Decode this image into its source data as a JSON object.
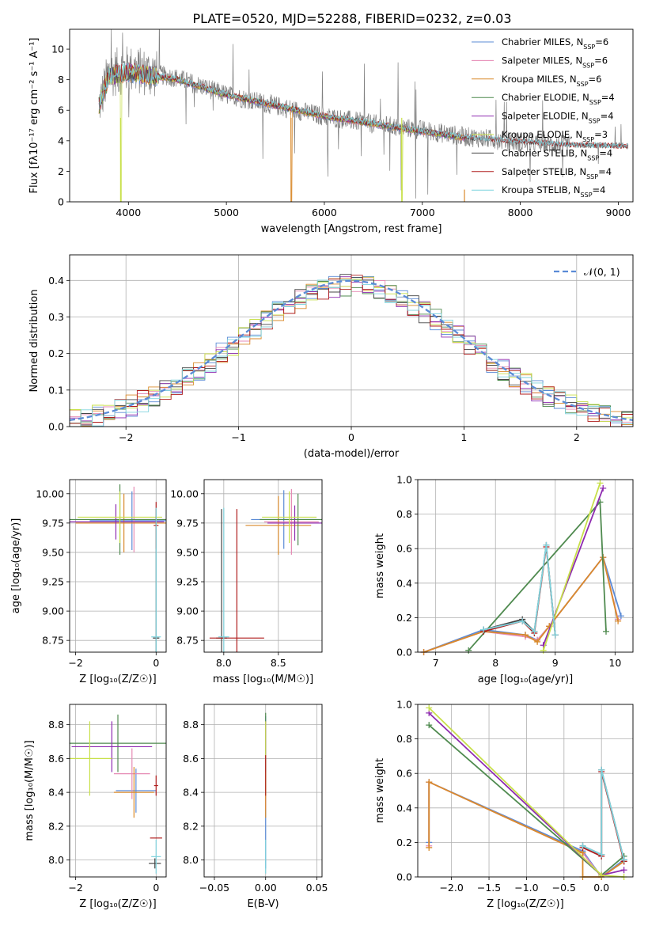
{
  "figure_title": "PLATE=0520, MJD=52288, FIBERID=0232, z=0.03",
  "colors": {
    "chabrier_miles": "#5b8bd6",
    "salpeter_miles": "#e68ab4",
    "kroupa_miles": "#d98a2b",
    "chabrier_elodie": "#4f8a4f",
    "salpeter_elodie": "#8e2bb0",
    "kroupa_elodie": "#c8e04a",
    "chabrier_stelib": "#444444",
    "salpeter_stelib": "#b01e1e",
    "kroupa_stelib": "#7fd3dd",
    "data": "#808080",
    "normal": "#5b8bd6",
    "grid": "#b0b0b0"
  },
  "chart_data": [
    {
      "id": "spectrum",
      "type": "line",
      "title": "PLATE=0520, MJD=52288, FIBERID=0232, z=0.03",
      "xlabel": "wavelength [Angstrom, rest frame]",
      "ylabel": "Flux [fλ10⁻¹⁷ erg cm⁻² s⁻¹ A⁻¹]",
      "xlim": [
        3400,
        9150
      ],
      "ylim": [
        0,
        11.3
      ],
      "xticks": [
        4000,
        5000,
        6000,
        7000,
        8000,
        9000
      ],
      "yticks": [
        0,
        2,
        4,
        6,
        8,
        10
      ],
      "grid": false,
      "legend_position": "top-right",
      "legend": [
        {
          "label": "Chabrier MILES, N",
          "sub": "SSP",
          "suffix": "=6",
          "color": "#5b8bd6"
        },
        {
          "label": "Salpeter MILES, N",
          "sub": "SSP",
          "suffix": "=6",
          "color": "#e68ab4"
        },
        {
          "label": "Kroupa MILES, N",
          "sub": "SSP",
          "suffix": "=6",
          "color": "#d98a2b"
        },
        {
          "label": "Chabrier ELODIE, N",
          "sub": "SSP",
          "suffix": "=4",
          "color": "#4f8a4f"
        },
        {
          "label": "Salpeter ELODIE, N",
          "sub": "SSP",
          "suffix": "=4",
          "color": "#8e2bb0"
        },
        {
          "label": "Kroupa ELODIE, N",
          "sub": "SSP",
          "suffix": "=3",
          "color": "#c8e04a"
        },
        {
          "label": "Chabrier STELIB, N",
          "sub": "SSP",
          "suffix": "=4",
          "color": "#444444"
        },
        {
          "label": "Salpeter STELIB, N",
          "sub": "SSP",
          "suffix": "=4",
          "color": "#b01e1e"
        },
        {
          "label": "Kroupa STELIB, N",
          "sub": "SSP",
          "suffix": "=4",
          "color": "#7fd3dd"
        }
      ],
      "data_trend": {
        "x": [
          3700,
          3800,
          4000,
          4500,
          5000,
          5500,
          6000,
          6500,
          7000,
          7400,
          8000,
          8500,
          9000,
          9100
        ],
        "y": [
          6.3,
          8.4,
          8.7,
          8.1,
          7.0,
          6.3,
          5.6,
          5.1,
          4.7,
          4.3,
          3.9,
          3.7,
          3.7,
          3.6
        ]
      },
      "model_trend": {
        "x": [
          3700,
          3800,
          4000,
          4500,
          5000,
          5500,
          6000,
          6500,
          7000,
          7430
        ],
        "y": [
          6.3,
          8.2,
          8.5,
          8.0,
          7.0,
          6.3,
          5.6,
          5.1,
          4.6,
          4.2
        ]
      },
      "model_drops": [
        3920,
        5660,
        6790,
        7430
      ]
    },
    {
      "id": "residuals",
      "type": "line",
      "xlabel": "(data-model)/error",
      "ylabel": "Normed distribution",
      "xlim": [
        -2.5,
        2.5
      ],
      "ylim": [
        0,
        0.47
      ],
      "xticks": [
        -2,
        -1,
        0,
        1,
        2
      ],
      "yticks": [
        0.0,
        0.1,
        0.2,
        0.3,
        0.4
      ],
      "grid": true,
      "legend_position": "top-right",
      "legend": [
        {
          "label": "𝒩(0, 1)",
          "color": "#5b8bd6"
        }
      ],
      "bin_width": 0.1,
      "normal": {
        "mean": 0,
        "sigma": 1
      }
    },
    {
      "id": "age_vs_z",
      "type": "scatter",
      "xlabel": "Z [log₁₀(Z/Z☉)]",
      "ylabel": "age  [log₁₀(age/yr)]",
      "xlim": [
        -2.15,
        0.25
      ],
      "ylim": [
        8.65,
        10.12
      ],
      "xticks": [
        -2,
        0
      ],
      "yticks": [
        8.75,
        9.0,
        9.25,
        9.5,
        9.75,
        10.0
      ],
      "grid": true,
      "points": [
        {
          "x": -0.6,
          "xerr": 1.05,
          "y": 9.77,
          "yerr": 0.25,
          "color": "#5b8bd6"
        },
        {
          "x": -0.55,
          "xerr": 0.95,
          "y": 9.78,
          "yerr": 0.28,
          "color": "#e68ab4"
        },
        {
          "x": -0.8,
          "xerr": 1.2,
          "y": 9.75,
          "yerr": 0.25,
          "color": "#d98a2b"
        },
        {
          "x": -0.9,
          "xerr": 1.25,
          "y": 9.78,
          "yerr": 0.3,
          "color": "#4f8a4f"
        },
        {
          "x": -1.0,
          "xerr": 1.2,
          "y": 9.76,
          "yerr": 0.15,
          "color": "#8e2bb0"
        },
        {
          "x": -0.9,
          "xerr": 1.05,
          "y": 9.8,
          "yerr": 0.22,
          "color": "#c8e04a"
        },
        {
          "x": 0.0,
          "xerr": 0.08,
          "y": 8.77,
          "yerr": 1.1,
          "color": "#444444"
        },
        {
          "x": 0.0,
          "xerr": 0.06,
          "y": 9.73,
          "yerr": 0.2,
          "color": "#b01e1e"
        },
        {
          "x": 0.0,
          "xerr": 0.12,
          "y": 8.78,
          "yerr": 1.1,
          "color": "#7fd3dd"
        }
      ]
    },
    {
      "id": "age_vs_mass",
      "type": "scatter",
      "xlabel": "mass [log₁₀(M/M☉)]",
      "ylabel": "",
      "xlim": [
        7.82,
        8.9
      ],
      "ylim": [
        8.65,
        10.12
      ],
      "xticks": [
        8.0,
        8.5
      ],
      "yticks": [
        8.75,
        9.0,
        9.25,
        9.5,
        9.75,
        10.0
      ],
      "grid": true,
      "points": [
        {
          "x": 8.55,
          "xerr": 0.3,
          "y": 9.78,
          "yerr": 0.25,
          "color": "#5b8bd6"
        },
        {
          "x": 8.62,
          "xerr": 0.25,
          "y": 9.76,
          "yerr": 0.28,
          "color": "#e68ab4"
        },
        {
          "x": 8.5,
          "xerr": 0.3,
          "y": 9.73,
          "yerr": 0.25,
          "color": "#d98a2b"
        },
        {
          "x": 8.68,
          "xerr": 0.35,
          "y": 9.78,
          "yerr": 0.22,
          "color": "#4f8a4f"
        },
        {
          "x": 8.65,
          "xerr": 0.25,
          "y": 9.75,
          "yerr": 0.15,
          "color": "#8e2bb0"
        },
        {
          "x": 8.6,
          "xerr": 0.25,
          "y": 9.8,
          "yerr": 0.22,
          "color": "#c8e04a"
        },
        {
          "x": 7.98,
          "xerr": 0.05,
          "y": 8.77,
          "yerr": 1.1,
          "color": "#444444"
        },
        {
          "x": 8.12,
          "xerr": 0.25,
          "y": 8.77,
          "yerr": 1.1,
          "color": "#b01e1e"
        },
        {
          "x": 8.0,
          "xerr": 0.05,
          "y": 8.78,
          "yerr": 1.1,
          "color": "#7fd3dd"
        }
      ]
    },
    {
      "id": "weight_vs_age",
      "type": "line",
      "xlabel": "age  [log₁₀(age/yr)]",
      "ylabel": "mass weight",
      "xlim": [
        6.7,
        10.3
      ],
      "ylim": [
        0,
        1.0
      ],
      "xticks": [
        7,
        8,
        9,
        10
      ],
      "yticks": [
        0.0,
        0.2,
        0.4,
        0.6,
        0.8,
        1.0
      ],
      "grid": true,
      "series": [
        {
          "color": "#5b8bd6",
          "x": [
            6.8,
            7.8,
            8.5,
            8.7,
            8.9,
            9.8,
            10.1
          ],
          "y": [
            0.0,
            0.13,
            0.1,
            0.07,
            0.15,
            0.55,
            0.21
          ]
        },
        {
          "color": "#e68ab4",
          "x": [
            6.8,
            7.8,
            8.5,
            8.7,
            8.9,
            9.8,
            10.05
          ],
          "y": [
            0.0,
            0.12,
            0.09,
            0.07,
            0.15,
            0.55,
            0.19
          ]
        },
        {
          "color": "#d98a2b",
          "x": [
            6.8,
            7.8,
            8.5,
            8.7,
            8.9,
            9.8,
            10.05
          ],
          "y": [
            0.0,
            0.12,
            0.1,
            0.06,
            0.15,
            0.55,
            0.18
          ]
        },
        {
          "color": "#4f8a4f",
          "x": [
            7.55,
            9.75,
            9.85
          ],
          "y": [
            0.01,
            0.87,
            0.12
          ]
        },
        {
          "color": "#8e2bb0",
          "x": [
            8.8,
            9.8
          ],
          "y": [
            0.04,
            0.95
          ]
        },
        {
          "color": "#c8e04a",
          "x": [
            8.8,
            9.75
          ],
          "y": [
            0.01,
            0.98
          ]
        },
        {
          "color": "#444444",
          "x": [
            7.8,
            8.45,
            8.65,
            8.85,
            9.0
          ],
          "y": [
            0.13,
            0.19,
            0.12,
            0.62,
            0.1
          ]
        },
        {
          "color": "#b01e1e",
          "x": [
            7.8,
            8.45,
            8.65,
            8.85,
            9.0
          ],
          "y": [
            0.12,
            0.18,
            0.11,
            0.61,
            0.1
          ]
        },
        {
          "color": "#7fd3dd",
          "x": [
            7.8,
            8.45,
            8.65,
            8.85,
            9.0
          ],
          "y": [
            0.13,
            0.18,
            0.12,
            0.62,
            0.1
          ]
        }
      ]
    },
    {
      "id": "mass_vs_z",
      "type": "scatter",
      "xlabel": "Z [log₁₀(Z/Z☉)]",
      "ylabel": "mass [log₁₀(M/M☉)]",
      "xlim": [
        -2.15,
        0.25
      ],
      "ylim": [
        7.9,
        8.92
      ],
      "xticks": [
        -2,
        0
      ],
      "yticks": [
        8.0,
        8.2,
        8.4,
        8.6,
        8.8
      ],
      "grid": true,
      "points": [
        {
          "x": -0.5,
          "xerr": 0.5,
          "y": 8.41,
          "yerr": 0.13,
          "color": "#5b8bd6"
        },
        {
          "x": -0.6,
          "xerr": 0.45,
          "y": 8.51,
          "yerr": 0.15,
          "color": "#e68ab4"
        },
        {
          "x": -0.55,
          "xerr": 0.5,
          "y": 8.4,
          "yerr": 0.15,
          "color": "#d98a2b"
        },
        {
          "x": -0.95,
          "xerr": 1.2,
          "y": 8.69,
          "yerr": 0.17,
          "color": "#4f8a4f"
        },
        {
          "x": -1.1,
          "xerr": 1.0,
          "y": 8.67,
          "yerr": 0.15,
          "color": "#8e2bb0"
        },
        {
          "x": -1.65,
          "xerr": 0.55,
          "y": 8.6,
          "yerr": 0.22,
          "color": "#c8e04a"
        },
        {
          "x": -0.03,
          "xerr": 0.15,
          "y": 7.98,
          "yerr": 0.03,
          "color": "#444444"
        },
        {
          "x": 0.0,
          "xerr": 0.15,
          "y": 8.13,
          "yerr": 0.0,
          "color": "#b01e1e"
        },
        {
          "x": 0.0,
          "xerr": 0.05,
          "y": 8.44,
          "yerr": 0.06,
          "color": "#b01e1e"
        },
        {
          "x": 0.0,
          "xerr": 0.12,
          "y": 8.02,
          "yerr": 0.1,
          "color": "#7fd3dd"
        }
      ]
    },
    {
      "id": "mass_vs_ebv",
      "type": "scatter",
      "xlabel": "E(B-V)",
      "ylabel": "",
      "xlim": [
        -0.06,
        0.055
      ],
      "ylim": [
        7.9,
        8.92
      ],
      "xticks": [
        -0.05,
        0.0,
        0.05
      ],
      "yticks": [
        8.0,
        8.2,
        8.4,
        8.6,
        8.8
      ],
      "grid": true,
      "points": [
        {
          "x": 0.0,
          "y": 8.4,
          "yerr": 0.45,
          "color": "#5b8bd6"
        },
        {
          "x": 0.0,
          "y": 8.5,
          "yerr": 0.2,
          "color": "#e68ab4"
        },
        {
          "x": 0.0,
          "y": 8.4,
          "yerr": 0.15,
          "color": "#d98a2b"
        },
        {
          "x": 0.0,
          "y": 8.7,
          "yerr": 0.17,
          "color": "#4f8a4f"
        },
        {
          "x": 0.0,
          "y": 8.67,
          "yerr": 0.15,
          "color": "#8e2bb0"
        },
        {
          "x": 0.0,
          "y": 8.6,
          "yerr": 0.22,
          "color": "#c8e04a"
        },
        {
          "x": 0.0,
          "y": 8.5,
          "yerr": 0.12,
          "color": "#b01e1e"
        },
        {
          "x": 0.0,
          "y": 8.02,
          "yerr": 0.1,
          "color": "#7fd3dd"
        }
      ]
    },
    {
      "id": "weight_vs_z",
      "type": "line",
      "xlabel": "Z [log₁₀(Z/Z☉)]",
      "ylabel": "mass weight",
      "xlim": [
        -2.45,
        0.42
      ],
      "ylim": [
        0,
        1.0
      ],
      "xticks": [
        -2.0,
        -1.5,
        -1.0,
        -0.5,
        0.0
      ],
      "yticks": [
        0.0,
        0.2,
        0.4,
        0.6,
        0.8,
        1.0
      ],
      "grid": true,
      "series": [
        {
          "color": "#5b8bd6",
          "x": [
            -2.3,
            -2.3,
            -0.25,
            0.0,
            0.3
          ],
          "y": [
            0.2,
            0.55,
            0.15,
            0.0,
            0.1
          ]
        },
        {
          "color": "#e68ab4",
          "x": [
            -2.3,
            -2.3,
            -0.25,
            0.0,
            0.3
          ],
          "y": [
            0.18,
            0.55,
            0.14,
            0.0,
            0.09
          ]
        },
        {
          "color": "#d98a2b",
          "x": [
            -2.3,
            -2.3,
            -0.25,
            -0.25,
            0.0,
            0.3
          ],
          "y": [
            0.17,
            0.55,
            0.14,
            0.0,
            0.0,
            0.09
          ]
        },
        {
          "color": "#4f8a4f",
          "x": [
            -2.3,
            0.0,
            0.3
          ],
          "y": [
            0.88,
            0.01,
            0.12
          ]
        },
        {
          "color": "#8e2bb0",
          "x": [
            -2.3,
            0.0,
            0.3
          ],
          "y": [
            0.95,
            0.01,
            0.04
          ]
        },
        {
          "color": "#c8e04a",
          "x": [
            -2.3,
            0.0,
            0.3
          ],
          "y": [
            0.98,
            0.01,
            0.0
          ]
        },
        {
          "color": "#444444",
          "x": [
            -0.25,
            0.0,
            0.0,
            0.3
          ],
          "y": [
            0.18,
            0.13,
            0.62,
            0.1
          ]
        },
        {
          "color": "#b01e1e",
          "x": [
            -0.25,
            0.0,
            0.0,
            0.3
          ],
          "y": [
            0.17,
            0.12,
            0.61,
            0.09
          ]
        },
        {
          "color": "#7fd3dd",
          "x": [
            -0.25,
            0.0,
            0.0,
            0.3
          ],
          "y": [
            0.18,
            0.13,
            0.62,
            0.1
          ]
        }
      ]
    }
  ]
}
